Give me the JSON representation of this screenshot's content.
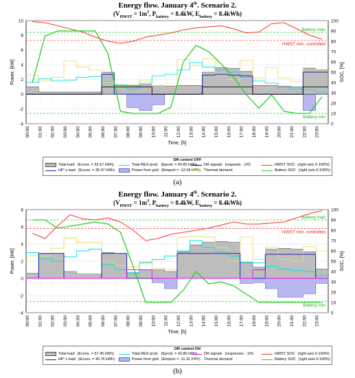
{
  "figure": {
    "panels": [
      {
        "id": "a",
        "title": "Energy flow.  January 4",
        "title_sup": "th",
        "title_tail": ".  Scenario 2.",
        "params": {
          "v_label": "(V",
          "v_sub": "HWST",
          "v_val": " = 1m",
          "v_sup": "3",
          "p_label": ", P",
          "p_sub": "battery",
          "p_val": " = 8.4kW, E",
          "e_sub": "battery",
          "e_val": " = 8.4kWh)"
        },
        "sublabel": "(a)",
        "legend_title": "DR control OFF",
        "legend": [
          {
            "label": "Total load",
            "note": "(Econs. = 52.67 kWh)",
            "kind": "area",
            "color": "#bdbdbd",
            "edge": "#555555"
          },
          {
            "label": "Total RES prod.",
            "note": "(Eprod. = 43.80 kWh)",
            "kind": "line",
            "color": "#00e5e5"
          },
          {
            "label": "DR signals",
            "note": "(requests - 1/0)",
            "kind": "line",
            "color": "#000000"
          },
          {
            "label": "HWST SOC",
            "note": "(right axis 0-100%)",
            "kind": "line",
            "color": "#ff3030"
          },
          {
            "label": "HP' s load",
            "note": "(Econs. = 35.97 kWh)",
            "kind": "line",
            "color": "#2020c0"
          },
          {
            "label": "Power from grid",
            "note": "(Eimport = -12.04 kWh)",
            "kind": "area",
            "color": "#b8b8f0",
            "edge": "#6060c0"
          },
          {
            "label": "Thermal demand",
            "note": "",
            "kind": "line",
            "color": "#f0e060"
          },
          {
            "label": "Battery SOC",
            "note": "(right axis 0-100%)",
            "kind": "line",
            "color": "#20d020"
          }
        ],
        "annotations": {
          "battery_max": "Battery max",
          "hwst_min": "HWST min. controlled",
          "battery_min": "Battery min"
        }
      },
      {
        "id": "b",
        "title": "Energy flow.  January 4",
        "title_sup": "th",
        "title_tail": ".  Scenario 2.",
        "params": {
          "v_label": "(V",
          "v_sub": "HWST",
          "v_val": " = 1m",
          "v_sup": "3",
          "p_label": ", P",
          "p_sub": "battery",
          "p_val": " = 8.4kW, E",
          "e_sub": "battery",
          "e_val": " = 8.4kWh)"
        },
        "sublabel": "(b)",
        "legend_title": "DR control ON",
        "legend": [
          {
            "label": "Total load",
            "note": "(Econs. = 57.46 kWh)",
            "kind": "area",
            "color": "#bdbdbd",
            "edge": "#555555"
          },
          {
            "label": "Total RES prod.",
            "note": "(Eprod. = 43.80 kWh)",
            "kind": "line",
            "color": "#00e5e5"
          },
          {
            "label": "DR signals",
            "note": "(responses - 1/0)",
            "kind": "line",
            "color": "#ff00ff"
          },
          {
            "label": "HWST SOC",
            "note": "(right axis 0-100%)",
            "kind": "line",
            "color": "#ff3030"
          },
          {
            "label": "HP' s load",
            "note": "(Econs. = 40.76 kWh)",
            "kind": "line",
            "color": "#2020c0"
          },
          {
            "label": "Power from grid",
            "note": "(Eimport = -11.31 kWh)",
            "kind": "area",
            "color": "#b8b8f0",
            "edge": "#6060c0"
          },
          {
            "label": "Thermal demand",
            "note": "",
            "kind": "line",
            "color": "#f0e060"
          },
          {
            "label": "Battery SOC",
            "note": "(right axis 0-100%)",
            "kind": "line",
            "color": "#20d020"
          }
        ],
        "annotations": {
          "battery_max": "Battery max",
          "hwst_min": "HWST min. controlled",
          "battery_min": "Battery min"
        }
      }
    ]
  },
  "chart_data": [
    {
      "type": "line",
      "title": "Energy flow.  January 4th.  Scenario 2.",
      "xlabel": "Time, [h]",
      "ylabel": "Power, [kW]",
      "ylabel_right": "SOC, [%]",
      "ylim": [
        -4,
        10
      ],
      "ylim_right": [
        0,
        100
      ],
      "yticks": [
        -4,
        -2,
        0,
        2,
        4,
        6,
        8,
        10
      ],
      "yticks_right": [
        0,
        10,
        20,
        30,
        40,
        50,
        60,
        70,
        80,
        90,
        100
      ],
      "x": [
        "00:00",
        "01:00",
        "02:00",
        "03:00",
        "04:00",
        "05:00",
        "06:00",
        "07:00",
        "08:00",
        "09:00",
        "10:00",
        "11:00",
        "12:00",
        "13:00",
        "14:00",
        "15:00",
        "16:00",
        "17:00",
        "18:00",
        "19:00",
        "20:00",
        "21:00",
        "22:00",
        "23:00"
      ],
      "reference_lines": {
        "battery_max_kw": 8.4,
        "hwst_min_kw": 7.3,
        "battery_min_kw": -2.6
      },
      "series": [
        {
          "name": "Total load",
          "values": [
            1.0,
            0.3,
            0.3,
            0.3,
            0.3,
            0.3,
            3.0,
            1.2,
            1.2,
            1.3,
            1.2,
            1.1,
            1.2,
            1.2,
            3.0,
            3.6,
            3.5,
            3.1,
            1.2,
            1.2,
            1.1,
            1.0,
            3.5,
            3.3
          ]
        },
        {
          "name": "HP' s load",
          "values": [
            0,
            0,
            0,
            0,
            0,
            0,
            2.7,
            0,
            0,
            0,
            0,
            0,
            0,
            0,
            2.6,
            2.7,
            2.6,
            2.5,
            0,
            0,
            0,
            0,
            3.0,
            3.0
          ]
        },
        {
          "name": "Total RES prod.",
          "values": [
            1.6,
            2.1,
            1.8,
            1.9,
            2.3,
            2.4,
            1.7,
            1.3,
            0.7,
            1.5,
            2.5,
            2.7,
            3.3,
            4.3,
            3.7,
            3.3,
            3.0,
            2.3,
            1.8,
            1.5,
            0.9,
            0.7,
            0.6,
            0.3
          ]
        },
        {
          "name": "Power from grid",
          "values": [
            0,
            0,
            0,
            0,
            0,
            0,
            0,
            0,
            -1.8,
            -2.2,
            -1.4,
            0,
            0,
            0,
            0,
            0,
            0,
            0,
            0,
            0,
            0,
            0,
            -2.2,
            0
          ]
        },
        {
          "name": "Thermal demand",
          "values": [
            2.6,
            1.8,
            2.3,
            4.5,
            3.7,
            3.3,
            1.6,
            1.1,
            1.3,
            1.9,
            1.2,
            1.0,
            4.7,
            3.9,
            4.8,
            2.6,
            2.0,
            4.6,
            2.2,
            3.6,
            2.2,
            1.7,
            3.6,
            3.2
          ]
        },
        {
          "name": "DR signals",
          "values": [
            0,
            0,
            0,
            0,
            0,
            0,
            1,
            1,
            1,
            1,
            0,
            0,
            0,
            0,
            1,
            1,
            1,
            1,
            0,
            0,
            0,
            0,
            1,
            1
          ]
        },
        {
          "name": "HWST SOC",
          "values": [
            99,
            98,
            95,
            92,
            89,
            84,
            80,
            78,
            80,
            84,
            86,
            88,
            91,
            93,
            94,
            95,
            92,
            88,
            89,
            97,
            98,
            92,
            86,
            82
          ]
        },
        {
          "name": "Battery SOC",
          "values": [
            40,
            85,
            90,
            90,
            90,
            90,
            68,
            12,
            10,
            10,
            10,
            16,
            60,
            76,
            70,
            58,
            45,
            28,
            15,
            28,
            12,
            10,
            10,
            26
          ]
        }
      ]
    },
    {
      "type": "line",
      "title": "Energy flow.  January 4th.  Scenario 2.",
      "xlabel": "Time, [h]",
      "ylabel": "Power, [kW]",
      "ylabel_right": "SOC, [%]",
      "ylim": [
        -4,
        8
      ],
      "ylim_right": [
        0,
        100
      ],
      "yticks": [
        -4,
        -2,
        0,
        2,
        4,
        6,
        8
      ],
      "yticks_right": [
        0,
        10,
        20,
        30,
        40,
        50,
        60,
        70,
        80,
        90,
        100
      ],
      "x": [
        "00:00",
        "01:00",
        "02:00",
        "03:00",
        "04:00",
        "05:00",
        "06:00",
        "07:00",
        "08:00",
        "09:00",
        "10:00",
        "11:00",
        "12:00",
        "13:00",
        "14:00",
        "15:00",
        "16:00",
        "17:00",
        "18:00",
        "19:00",
        "20:00",
        "21:00",
        "22:00",
        "23:00"
      ],
      "reference_lines": {
        "battery_max_kw": 6.8,
        "hwst_min_kw": 5.8,
        "battery_min_kw": -2.7
      },
      "series": [
        {
          "name": "Total load",
          "values": [
            0.6,
            2.9,
            2.9,
            0.8,
            0.5,
            0.5,
            3.0,
            2.9,
            0.6,
            1.0,
            1.0,
            0.8,
            3.1,
            3.9,
            4.2,
            4.3,
            4.2,
            1.8,
            1.3,
            3.4,
            3.5,
            3.4,
            3.1,
            1.1
          ]
        },
        {
          "name": "HP' s load",
          "values": [
            0,
            2.9,
            2.9,
            0,
            0,
            0,
            2.9,
            2.9,
            0,
            0,
            0,
            0,
            2.9,
            2.9,
            2.9,
            2.9,
            2.9,
            0,
            0,
            2.8,
            2.8,
            2.8,
            2.8,
            0
          ]
        },
        {
          "name": "Total RES prod.",
          "values": [
            3.0,
            2.3,
            2.0,
            2.5,
            3.2,
            3.4,
            1.6,
            1.0,
            0.7,
            1.8,
            2.2,
            2.6,
            3.2,
            4.4,
            3.6,
            3.1,
            2.6,
            1.9,
            1.8,
            1.4,
            1.1,
            0.9,
            0.8,
            0.3
          ]
        },
        {
          "name": "Power from grid",
          "values": [
            0,
            0,
            0,
            0,
            0,
            0,
            0,
            0,
            0,
            0,
            -0.5,
            -1.2,
            0,
            0,
            0,
            0,
            0,
            -0.6,
            -0.5,
            -1.2,
            -2.2,
            -2.2,
            -1.8,
            -0.6
          ]
        },
        {
          "name": "Thermal demand",
          "values": [
            2.6,
            2.6,
            3.5,
            4.7,
            4.2,
            4.2,
            2.0,
            1.5,
            1.3,
            1.9,
            1.2,
            1.0,
            4.8,
            4.9,
            4.8,
            3.6,
            2.0,
            4.8,
            2.2,
            3.6,
            2.2,
            2.0,
            3.7,
            3.2
          ]
        },
        {
          "name": "DR signals",
          "values": [
            0,
            0,
            0,
            0,
            0,
            0,
            0,
            0,
            1,
            1,
            0,
            0,
            0,
            0,
            0,
            0,
            0,
            0,
            1,
            0,
            0,
            0,
            0,
            0
          ]
        },
        {
          "name": "HWST SOC",
          "values": [
            77,
            72,
            84,
            95,
            91,
            90,
            92,
            88,
            80,
            70,
            72,
            76,
            78,
            80,
            82,
            85,
            88,
            86,
            86,
            87,
            88,
            92,
            96,
            99
          ]
        },
        {
          "name": "Battery SOC",
          "values": [
            90,
            90,
            82,
            84,
            86,
            88,
            86,
            78,
            45,
            10,
            10,
            10,
            22,
            40,
            28,
            30,
            26,
            18,
            10,
            10,
            10,
            10,
            10,
            10
          ]
        }
      ]
    }
  ]
}
